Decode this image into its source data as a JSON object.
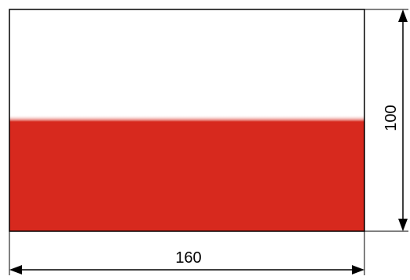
{
  "flag": {
    "top_color": "#ffffff",
    "bottom_color": "#d7291e",
    "outline_color": "#000000"
  },
  "dimensions": {
    "width_label": "160",
    "height_label": "100"
  }
}
